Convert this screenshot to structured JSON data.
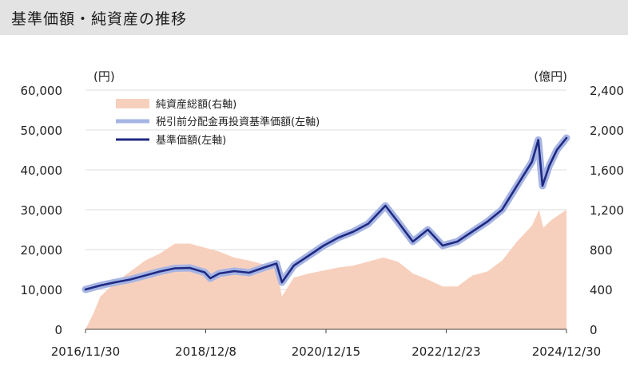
{
  "header": {
    "title": "基準価額・純資産の推移"
  },
  "colors": {
    "title_bar_bg": "#e3e3e3",
    "assets_fill": "#f7d0bd",
    "reinvest_line": "#a6b4e3",
    "nav_line": "#1f2a83",
    "grid": "#dddddd"
  },
  "chart_data": {
    "type": "line+area",
    "title": "基準価額・純資産の推移",
    "y_left": {
      "unit_label": "(円)",
      "range": [
        0,
        60000
      ],
      "ticks": [
        "60,000",
        "50,000",
        "40,000",
        "30,000",
        "20,000",
        "10,000",
        "0"
      ]
    },
    "y_right": {
      "unit_label": "(億円)",
      "range": [
        0,
        2400
      ],
      "ticks": [
        "2,400",
        "2,000",
        "1,600",
        "1,200",
        "800",
        "400",
        "0"
      ]
    },
    "x": {
      "ticks": [
        "2016/11/30",
        "2018/12/8",
        "2020/12/15",
        "2022/12/23",
        "2024/12/30"
      ],
      "range": [
        "2016-11-30",
        "2024-12-30"
      ]
    },
    "grid": "horizontal",
    "legend_position": "top-left",
    "legend": [
      {
        "label": "純資産総額(右軸)",
        "kind": "area"
      },
      {
        "label": "税引前分配金再投資基準価額(左軸)",
        "kind": "line-light"
      },
      {
        "label": "基準価額(左軸)",
        "kind": "line-dark"
      }
    ],
    "series": [
      {
        "name": "純資産総額(右軸)",
        "axis": "right",
        "unit": "億円",
        "points": [
          [
            "2016-11-30",
            0
          ],
          [
            "2017-01-15",
            150
          ],
          [
            "2017-03-01",
            330
          ],
          [
            "2017-06-01",
            470
          ],
          [
            "2017-09-01",
            580
          ],
          [
            "2017-12-01",
            690
          ],
          [
            "2018-03-01",
            760
          ],
          [
            "2018-06-01",
            860
          ],
          [
            "2018-09-01",
            860
          ],
          [
            "2018-12-01",
            820
          ],
          [
            "2019-03-01",
            780
          ],
          [
            "2019-06-01",
            720
          ],
          [
            "2019-09-01",
            690
          ],
          [
            "2019-12-01",
            650
          ],
          [
            "2020-02-15",
            600
          ],
          [
            "2020-03-20",
            330
          ],
          [
            "2020-06-01",
            520
          ],
          [
            "2020-09-01",
            560
          ],
          [
            "2020-12-01",
            590
          ],
          [
            "2021-03-01",
            620
          ],
          [
            "2021-06-01",
            640
          ],
          [
            "2021-09-01",
            680
          ],
          [
            "2021-12-01",
            720
          ],
          [
            "2022-03-01",
            680
          ],
          [
            "2022-06-01",
            560
          ],
          [
            "2022-09-01",
            500
          ],
          [
            "2022-12-01",
            430
          ],
          [
            "2023-03-01",
            430
          ],
          [
            "2023-06-01",
            540
          ],
          [
            "2023-09-01",
            580
          ],
          [
            "2023-12-01",
            690
          ],
          [
            "2024-03-01",
            880
          ],
          [
            "2024-06-01",
            1040
          ],
          [
            "2024-07-15",
            1200
          ],
          [
            "2024-08-10",
            1020
          ],
          [
            "2024-10-01",
            1100
          ],
          [
            "2024-12-30",
            1200
          ]
        ]
      },
      {
        "name": "税引前分配金再投資基準価額(左軸)",
        "axis": "left",
        "unit": "円",
        "points": [
          [
            "2016-11-30",
            10000
          ],
          [
            "2017-03-01",
            11000
          ],
          [
            "2017-06-01",
            11800
          ],
          [
            "2017-09-01",
            12500
          ],
          [
            "2017-12-01",
            13500
          ],
          [
            "2018-03-01",
            14500
          ],
          [
            "2018-06-01",
            15300
          ],
          [
            "2018-09-01",
            15400
          ],
          [
            "2018-12-01",
            14300
          ],
          [
            "2019-01-05",
            12800
          ],
          [
            "2019-03-01",
            14000
          ],
          [
            "2019-06-01",
            14600
          ],
          [
            "2019-09-01",
            14200
          ],
          [
            "2019-12-01",
            15500
          ],
          [
            "2020-02-15",
            16500
          ],
          [
            "2020-03-20",
            11800
          ],
          [
            "2020-06-01",
            16000
          ],
          [
            "2020-09-01",
            18500
          ],
          [
            "2020-12-01",
            21000
          ],
          [
            "2021-03-01",
            23000
          ],
          [
            "2021-06-01",
            24500
          ],
          [
            "2021-09-01",
            26500
          ],
          [
            "2021-12-15",
            31000
          ],
          [
            "2022-03-01",
            27000
          ],
          [
            "2022-06-01",
            22000
          ],
          [
            "2022-09-01",
            25000
          ],
          [
            "2022-12-01",
            21000
          ],
          [
            "2023-03-01",
            22000
          ],
          [
            "2023-06-01",
            24500
          ],
          [
            "2023-09-01",
            27000
          ],
          [
            "2023-12-01",
            30000
          ],
          [
            "2024-03-01",
            36000
          ],
          [
            "2024-06-01",
            42000
          ],
          [
            "2024-07-10",
            47500
          ],
          [
            "2024-08-05",
            36000
          ],
          [
            "2024-09-15",
            41000
          ],
          [
            "2024-11-01",
            45000
          ],
          [
            "2024-12-30",
            48000
          ]
        ]
      },
      {
        "name": "基準価額(左軸)",
        "axis": "left",
        "unit": "円",
        "points": [
          [
            "2016-11-30",
            10000
          ],
          [
            "2017-03-01",
            11000
          ],
          [
            "2017-06-01",
            11800
          ],
          [
            "2017-09-01",
            12500
          ],
          [
            "2017-12-01",
            13500
          ],
          [
            "2018-03-01",
            14500
          ],
          [
            "2018-06-01",
            15300
          ],
          [
            "2018-09-01",
            15400
          ],
          [
            "2018-12-01",
            14300
          ],
          [
            "2019-01-05",
            12800
          ],
          [
            "2019-03-01",
            14000
          ],
          [
            "2019-06-01",
            14600
          ],
          [
            "2019-09-01",
            14200
          ],
          [
            "2019-12-01",
            15500
          ],
          [
            "2020-02-15",
            16500
          ],
          [
            "2020-03-20",
            11800
          ],
          [
            "2020-06-01",
            16000
          ],
          [
            "2020-09-01",
            18500
          ],
          [
            "2020-12-01",
            21000
          ],
          [
            "2021-03-01",
            23000
          ],
          [
            "2021-06-01",
            24500
          ],
          [
            "2021-09-01",
            26500
          ],
          [
            "2021-12-15",
            31000
          ],
          [
            "2022-03-01",
            27000
          ],
          [
            "2022-06-01",
            22000
          ],
          [
            "2022-09-01",
            25000
          ],
          [
            "2022-12-01",
            21000
          ],
          [
            "2023-03-01",
            22000
          ],
          [
            "2023-06-01",
            24500
          ],
          [
            "2023-09-01",
            27000
          ],
          [
            "2023-12-01",
            30000
          ],
          [
            "2024-03-01",
            36000
          ],
          [
            "2024-06-01",
            42000
          ],
          [
            "2024-07-10",
            47500
          ],
          [
            "2024-08-05",
            36000
          ],
          [
            "2024-09-15",
            41000
          ],
          [
            "2024-11-01",
            45000
          ],
          [
            "2024-12-30",
            48000
          ]
        ]
      }
    ]
  }
}
